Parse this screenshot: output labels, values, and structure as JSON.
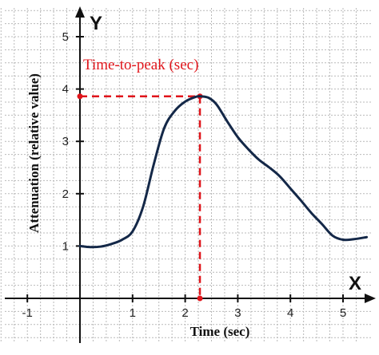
{
  "chart_data": {
    "type": "line",
    "xlabel": "Time (sec)",
    "ylabel": "Attenuation (relative value)",
    "x_axis_letter": "X",
    "y_axis_letter": "Y",
    "xlim": [
      -1.5,
      5.45
    ],
    "ylim": [
      -0.85,
      5.55
    ],
    "x_ticks": [
      -1,
      1,
      2,
      3,
      4,
      5
    ],
    "x_tick_labels": [
      "-1",
      "1",
      "2",
      "3",
      "4",
      "5"
    ],
    "y_ticks": [
      1,
      2,
      3,
      4,
      5
    ],
    "y_tick_labels": [
      "1",
      "2",
      "3",
      "4",
      "5"
    ],
    "grid": true,
    "grid_step": 0.25,
    "series": [
      {
        "color": "#142848",
        "x": [
          0,
          0.2,
          0.4,
          0.6,
          0.8,
          1.0,
          1.2,
          1.4,
          1.6,
          1.8,
          2.0,
          2.2,
          2.3,
          2.45,
          2.6,
          2.8,
          3.0,
          3.2,
          3.4,
          3.6,
          3.8,
          4.0,
          4.2,
          4.4,
          4.6,
          4.8,
          5.0,
          5.2,
          5.45
        ],
        "y": [
          1.0,
          0.98,
          0.99,
          1.04,
          1.12,
          1.28,
          1.75,
          2.55,
          3.25,
          3.58,
          3.76,
          3.85,
          3.86,
          3.83,
          3.7,
          3.38,
          3.08,
          2.85,
          2.65,
          2.5,
          2.33,
          2.1,
          1.87,
          1.63,
          1.42,
          1.2,
          1.12,
          1.13,
          1.17
        ]
      }
    ],
    "annotations": [
      {
        "text": "Time-to-peak (sec)",
        "color": "#e0151b",
        "peak_x": 2.28,
        "peak_y": 3.86
      }
    ]
  }
}
